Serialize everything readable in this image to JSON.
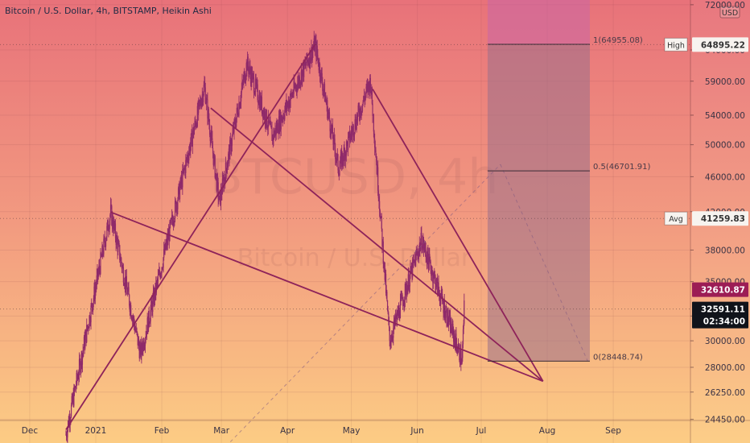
{
  "header": {
    "symbol_title": "Bitcoin / U.S. Dollar, 4h, BITSTAMP, Heikin Ashi"
  },
  "watermark": {
    "ticker": "BTCUSD, 4h",
    "name": "Bitcoin / U.S. Dollar"
  },
  "price_scale": {
    "currency_badge": "USD",
    "badges": {
      "high_label": "High",
      "high_value": "64895.22",
      "avg_label": "Avg",
      "avg_value": "41259.83",
      "last_value": "32610.87",
      "current_value": "32591.11",
      "countdown": "02:34:00"
    }
  },
  "fib": {
    "level_1": "1(64955.08)",
    "level_05": "0.5(46701.91)",
    "level_0": "0(28448.74)"
  },
  "colors": {
    "bg_top": "#e8727a",
    "bg_bottom": "#fccc84",
    "candle": "#8f2a6a",
    "trendline": "#8e235a",
    "projection_box": "#9a6f8a",
    "projection_top": "#c966a6"
  },
  "chart_data": {
    "type": "candlestick",
    "scale": "log",
    "ylim": [
      24450,
      72000
    ],
    "y_ticks": [
      "72000.00",
      "64000.00",
      "59000.00",
      "54000.00",
      "50000.00",
      "46000.00",
      "42000.00",
      "38000.00",
      "35000.00",
      "32000.00",
      "30000.00",
      "28000.00",
      "26250.00",
      "24450.00"
    ],
    "x_ticks": [
      "Dec",
      "2021",
      "Feb",
      "Mar",
      "Apr",
      "May",
      "Jun",
      "Jul",
      "Aug",
      "Sep"
    ],
    "key_points": [
      {
        "date": "2020-12-18",
        "price": 23500
      },
      {
        "date": "2021-01-08",
        "price": 41950
      },
      {
        "date": "2021-01-22",
        "price": 29000
      },
      {
        "date": "2021-02-21",
        "price": 58300
      },
      {
        "date": "2021-02-28",
        "price": 43000
      },
      {
        "date": "2021-03-13",
        "price": 61800
      },
      {
        "date": "2021-03-25",
        "price": 51000
      },
      {
        "date": "2021-04-14",
        "price": 64955
      },
      {
        "date": "2021-04-25",
        "price": 47000
      },
      {
        "date": "2021-05-10",
        "price": 59000
      },
      {
        "date": "2021-05-19",
        "price": 30000
      },
      {
        "date": "2021-06-03",
        "price": 39000
      },
      {
        "date": "2021-06-22",
        "price": 28449
      },
      {
        "date": "2021-06-23",
        "price": 32591
      }
    ]
  }
}
